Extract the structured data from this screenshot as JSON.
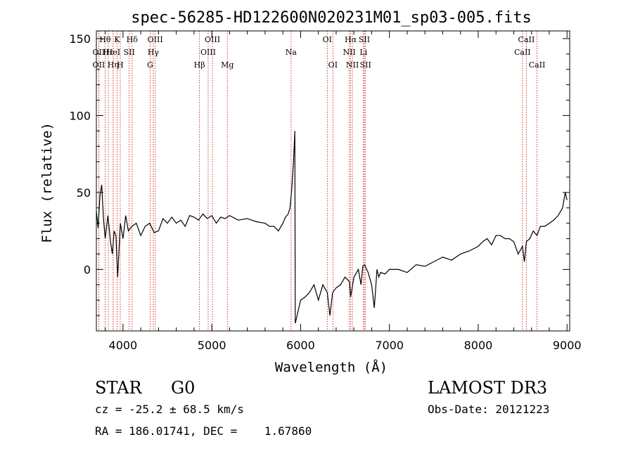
{
  "chart_data": {
    "type": "line",
    "title": "spec-56285-HD122600N020231M01_sp03-005.fits",
    "xlabel": "Wavelength (Å)",
    "ylabel": "Flux (relative)",
    "xlim": [
      3700,
      9030
    ],
    "ylim": [
      -40,
      155
    ],
    "xticks": [
      4000,
      5000,
      6000,
      7000,
      8000,
      9000
    ],
    "yticks": [
      0,
      50,
      100,
      150
    ],
    "grid": false,
    "line_color": "#000000",
    "marker_color": "#cc0000",
    "series": [
      {
        "x": [
          3700,
          3720,
          3740,
          3760,
          3780,
          3800,
          3830,
          3860,
          3880,
          3900,
          3920,
          3940,
          3970,
          4000,
          4030,
          4060,
          4100,
          4150,
          4200,
          4250,
          4300,
          4350,
          4400,
          4450,
          4500,
          4550,
          4600,
          4650,
          4700,
          4750,
          4800,
          4850,
          4900,
          4950,
          5000,
          5050,
          5100,
          5150,
          5200,
          5300,
          5400,
          5500,
          5600,
          5650,
          5700,
          5750,
          5800,
          5830,
          5860,
          5880,
          5900,
          5920,
          5935,
          5940,
          5960,
          5980,
          6000,
          6050,
          6100,
          6150,
          6200,
          6250,
          6300,
          6330,
          6360,
          6400,
          6450,
          6500,
          6550,
          6563,
          6600,
          6650,
          6680,
          6700,
          6720,
          6760,
          6800,
          6830,
          6860,
          6880,
          6900,
          6950,
          7000,
          7100,
          7200,
          7300,
          7400,
          7500,
          7600,
          7700,
          7800,
          7900,
          8000,
          8050,
          8100,
          8150,
          8200,
          8250,
          8300,
          8350,
          8400,
          8450,
          8498,
          8520,
          8542,
          8580,
          8620,
          8662,
          8700,
          8750,
          8800,
          8850,
          8900,
          8950,
          8980,
          9000
        ],
        "y": [
          38,
          27,
          48,
          55,
          33,
          20,
          35,
          18,
          10,
          25,
          22,
          -5,
          30,
          20,
          35,
          25,
          28,
          30,
          22,
          28,
          30,
          24,
          25,
          33,
          30,
          34,
          30,
          32,
          28,
          35,
          34,
          32,
          36,
          33,
          35,
          30,
          34,
          33,
          35,
          32,
          33,
          31,
          30,
          28,
          28,
          25,
          30,
          34,
          36,
          40,
          52,
          70,
          90,
          -35,
          -30,
          -25,
          -20,
          -18,
          -15,
          -10,
          -20,
          -10,
          -15,
          -30,
          -15,
          -12,
          -10,
          -5,
          -8,
          -18,
          -5,
          0,
          -10,
          2,
          3,
          -2,
          -10,
          -25,
          0,
          -5,
          -2,
          -3,
          0,
          0,
          -2,
          3,
          2,
          5,
          8,
          6,
          10,
          12,
          15,
          18,
          20,
          16,
          22,
          22,
          20,
          20,
          18,
          10,
          15,
          5,
          18,
          20,
          25,
          22,
          28,
          28,
          30,
          32,
          35,
          40,
          50,
          45
        ]
      }
    ],
    "lines": [
      {
        "name": "Hθ",
        "x": 3798,
        "row": 0
      },
      {
        "name": "OII",
        "x": 3727,
        "row": 1
      },
      {
        "name": "OII",
        "x": 3727,
        "row": 2
      },
      {
        "name": "Hε",
        "x": 3835,
        "row": 1
      },
      {
        "name": "Hη",
        "x": 3889,
        "row": 2
      },
      {
        "name": "HeI",
        "x": 3889,
        "row": 1
      },
      {
        "name": "K",
        "x": 3934,
        "row": 0
      },
      {
        "name": "SII",
        "x": 4070,
        "row": 1
      },
      {
        "name": "H",
        "x": 3969,
        "row": 2
      },
      {
        "name": "Hδ",
        "x": 4102,
        "row": 0
      },
      {
        "name": "OIII",
        "x": 4363,
        "row": 0
      },
      {
        "name": "Hγ",
        "x": 4341,
        "row": 1
      },
      {
        "name": "G",
        "x": 4305,
        "row": 2
      },
      {
        "name": "Hβ",
        "x": 4861,
        "row": 2
      },
      {
        "name": "OIII",
        "x": 4959,
        "row": 1
      },
      {
        "name": "OIII",
        "x": 5007,
        "row": 0
      },
      {
        "name": "Mg",
        "x": 5175,
        "row": 2
      },
      {
        "name": "Na",
        "x": 5893,
        "row": 1
      },
      {
        "name": "OI",
        "x": 6300,
        "row": 0
      },
      {
        "name": "OI",
        "x": 6364,
        "row": 2
      },
      {
        "name": "Hα",
        "x": 6563,
        "row": 0
      },
      {
        "name": "NII",
        "x": 6548,
        "row": 1
      },
      {
        "name": "NII",
        "x": 6583,
        "row": 2
      },
      {
        "name": "SII",
        "x": 6717,
        "row": 0
      },
      {
        "name": "Li",
        "x": 6708,
        "row": 1
      },
      {
        "name": "SII",
        "x": 6731,
        "row": 2
      },
      {
        "name": "CaII",
        "x": 8542,
        "row": 0
      },
      {
        "name": "CaII",
        "x": 8498,
        "row": 1
      },
      {
        "name": "CaII",
        "x": 8662,
        "row": 2
      }
    ]
  },
  "info": {
    "object_class": "STAR",
    "subclass": "G0",
    "survey": "LAMOST DR3",
    "cz": "cz = -25.2 ± 68.5 km/s",
    "obs_date": "Obs-Date: 20121223",
    "coords": "RA = 186.01741, DEC =    1.67860"
  }
}
